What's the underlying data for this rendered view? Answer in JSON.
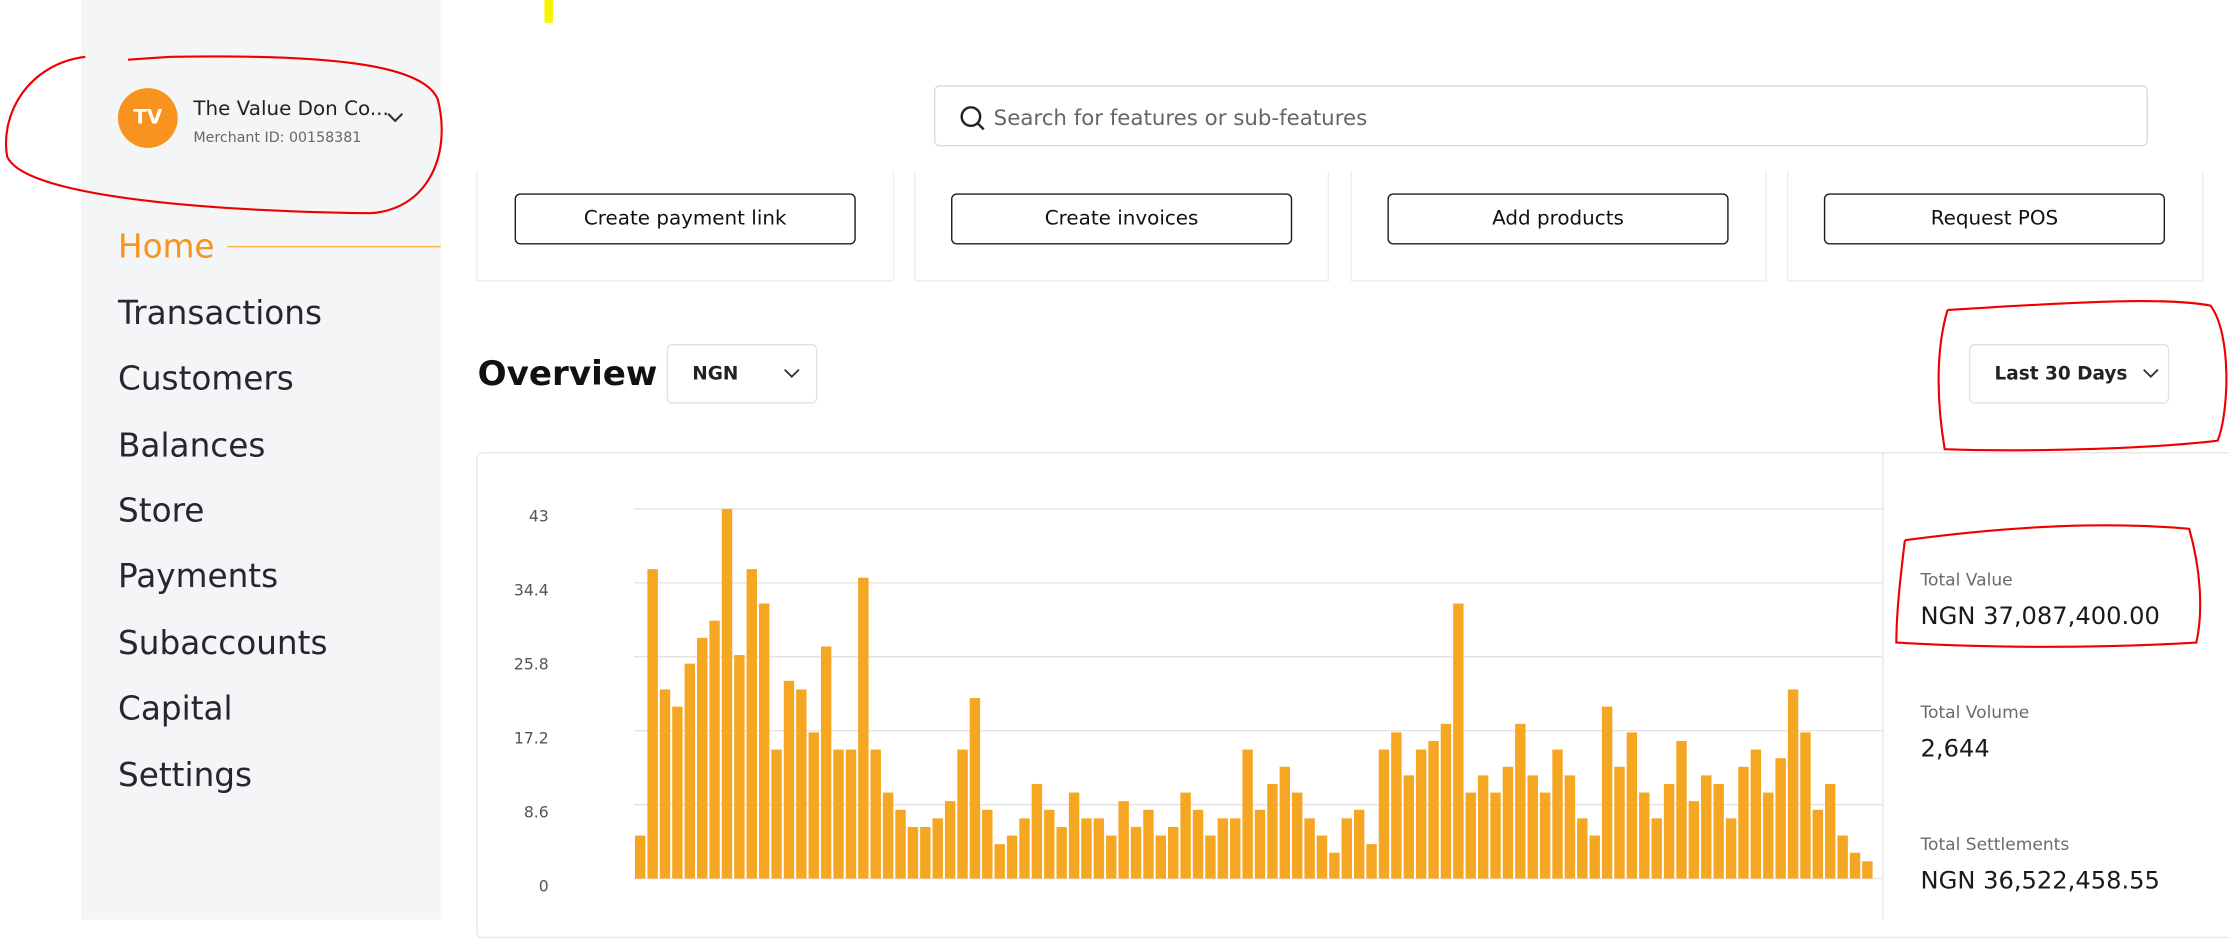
{
  "header": {
    "account_initials": "TV",
    "account_name": "The Value Don Co...",
    "merchant_id": "Merchant ID: 00158381",
    "search_placeholder": "Search for features or sub-features"
  },
  "nav": [
    "Home",
    "Transactions",
    "Customers",
    "Balances",
    "Store",
    "Payments",
    "Subaccounts",
    "Capital",
    "Settings"
  ],
  "actions": [
    "Create payment link",
    "Create invoices",
    "Add products",
    "Request POS"
  ],
  "overview": {
    "title": "Overview",
    "currency": "NGN",
    "period": "Last 30 Days"
  },
  "chart_data": {
    "type": "bar",
    "categories": [
      null,
      null,
      null,
      null,
      null,
      null,
      null,
      null,
      null,
      null,
      null,
      null,
      null,
      null,
      null,
      null,
      null,
      null,
      null,
      null,
      null,
      null,
      null,
      null,
      null,
      null,
      null,
      null,
      null,
      null,
      null,
      null,
      null,
      null,
      null,
      null,
      null,
      null,
      null,
      null,
      null,
      null,
      null,
      null,
      null,
      null,
      null,
      null,
      null,
      null,
      null,
      null,
      null,
      null,
      null,
      null,
      null,
      null,
      null,
      null,
      null,
      null,
      null,
      null,
      null,
      null,
      null,
      null,
      null,
      null,
      null,
      null,
      null,
      null,
      null,
      null,
      null,
      null,
      null,
      null,
      null,
      null,
      null,
      null,
      null,
      null,
      null,
      null,
      null,
      null,
      null,
      null,
      null,
      null,
      null,
      null,
      null,
      null,
      null,
      null
    ],
    "values": [
      5,
      36,
      22,
      20,
      25,
      28,
      30,
      43,
      26,
      36,
      32,
      15,
      23,
      22,
      17,
      27,
      15,
      15,
      35,
      15,
      10,
      8,
      6,
      6,
      7,
      9,
      15,
      21,
      8,
      4,
      5,
      7,
      11,
      8,
      6,
      10,
      7,
      7,
      5,
      9,
      6,
      8,
      5,
      6,
      10,
      8,
      5,
      7,
      7,
      15,
      8,
      11,
      13,
      10,
      7,
      5,
      3,
      7,
      8,
      4,
      15,
      17,
      12,
      15,
      16,
      18,
      32,
      10,
      12,
      10,
      13,
      18,
      12,
      10,
      15,
      12,
      7,
      5,
      20,
      13,
      17,
      10,
      7,
      11,
      16,
      9,
      12,
      11,
      7,
      13,
      15,
      10,
      14,
      22,
      17,
      8,
      11,
      5,
      3,
      2
    ],
    "color": "#f5a623",
    "ylim": [
      0,
      43
    ],
    "yticks": [
      0,
      8.6,
      17.2,
      25.8,
      34.4,
      43
    ],
    "grid": true
  },
  "stats": [
    {
      "label": "Total Value",
      "value": "NGN 37,087,400.00"
    },
    {
      "label": "Total Volume",
      "value": "2,644"
    },
    {
      "label": "Total Settlements",
      "value": "NGN 36,522,458.55"
    }
  ]
}
